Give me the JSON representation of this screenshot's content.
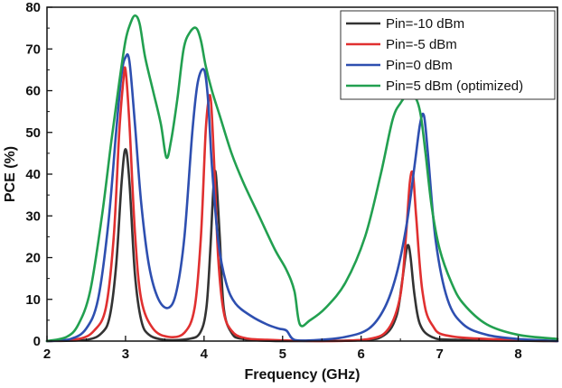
{
  "chart_data": {
    "type": "line",
    "title": "",
    "xlabel": "Frequency (GHz)",
    "ylabel": "PCE (%)",
    "xlim": [
      2,
      8.5
    ],
    "ylim": [
      0,
      80
    ],
    "xticks": [
      "2",
      "3",
      "4",
      "5",
      "6",
      "7",
      "8"
    ],
    "yticks": [
      "0",
      "10",
      "20",
      "30",
      "40",
      "50",
      "60",
      "70",
      "80"
    ],
    "grid": false,
    "legend_position": "top-right",
    "series": [
      {
        "name": "Pin=-10 dBm",
        "color": "#333333",
        "x": [
          2.0,
          2.5,
          2.7,
          2.8,
          2.88,
          2.95,
          3.0,
          3.05,
          3.12,
          3.2,
          3.3,
          3.5,
          3.8,
          3.95,
          4.03,
          4.08,
          4.12,
          4.15,
          4.2,
          4.25,
          4.35,
          4.5,
          5.0,
          6.0,
          6.3,
          6.45,
          6.52,
          6.57,
          6.6,
          6.63,
          6.68,
          6.75,
          6.9,
          7.2,
          8.5
        ],
        "y": [
          0,
          0.3,
          2,
          6,
          18,
          38,
          46,
          38,
          16,
          5,
          1.5,
          0.3,
          0.5,
          2,
          8,
          22,
          37,
          40,
          25,
          8,
          2,
          0.5,
          0,
          0.2,
          1.5,
          6,
          14,
          21,
          23,
          20,
          11,
          4,
          1,
          0.3,
          0
        ]
      },
      {
        "name": "Pin=-5 dBm",
        "color": "#e03030",
        "x": [
          2.0,
          2.4,
          2.6,
          2.75,
          2.85,
          2.92,
          2.97,
          3.0,
          3.05,
          3.12,
          3.2,
          3.35,
          3.55,
          3.75,
          3.88,
          3.96,
          4.02,
          4.06,
          4.09,
          4.13,
          4.18,
          4.25,
          4.35,
          4.5,
          4.8,
          5.5,
          6.1,
          6.35,
          6.5,
          6.57,
          6.62,
          6.66,
          6.7,
          6.78,
          6.9,
          7.2,
          8.5
        ],
        "y": [
          0,
          0.5,
          2.5,
          8,
          25,
          50,
          62,
          65,
          52,
          26,
          10,
          3,
          1,
          2,
          8,
          25,
          50,
          58,
          57,
          42,
          20,
          7,
          2.5,
          0.8,
          0.3,
          0,
          0.5,
          3,
          11,
          25,
          38,
          40,
          30,
          12,
          4,
          1,
          0
        ]
      },
      {
        "name": "Pin=0 dBm",
        "color": "#2e4fb0",
        "x": [
          2.0,
          2.3,
          2.5,
          2.65,
          2.78,
          2.88,
          2.95,
          3.0,
          3.05,
          3.12,
          3.2,
          3.3,
          3.42,
          3.55,
          3.65,
          3.75,
          3.85,
          3.92,
          4.0,
          4.05,
          4.1,
          4.18,
          4.28,
          4.4,
          4.6,
          4.8,
          4.95,
          5.05,
          5.15,
          5.4,
          5.8,
          6.1,
          6.3,
          6.45,
          6.58,
          6.68,
          6.75,
          6.8,
          6.85,
          6.95,
          7.1,
          7.3,
          7.6,
          8.0,
          8.5
        ],
        "y": [
          0,
          0.5,
          3,
          10,
          28,
          50,
          64,
          68,
          67,
          52,
          33,
          18,
          10,
          8,
          12,
          25,
          50,
          62,
          65,
          58,
          42,
          24,
          14,
          9,
          6,
          4,
          3,
          2.5,
          0.3,
          0.2,
          1,
          3,
          8,
          16,
          28,
          42,
          52,
          54,
          45,
          24,
          10,
          4,
          1.5,
          0.5,
          0
        ]
      },
      {
        "name": "Pin=5 dBm (optimized)",
        "color": "#22a050",
        "x": [
          2.0,
          2.25,
          2.4,
          2.55,
          2.7,
          2.82,
          2.92,
          3.0,
          3.06,
          3.12,
          3.18,
          3.25,
          3.35,
          3.45,
          3.52,
          3.58,
          3.66,
          3.74,
          3.82,
          3.9,
          3.96,
          4.02,
          4.1,
          4.2,
          4.35,
          4.5,
          4.7,
          4.9,
          5.05,
          5.15,
          5.22,
          5.35,
          5.55,
          5.8,
          6.05,
          6.25,
          6.4,
          6.5,
          6.6,
          6.7,
          6.76,
          6.82,
          6.9,
          7.0,
          7.15,
          7.3,
          7.6,
          8.0,
          8.5
        ],
        "y": [
          0,
          1,
          4,
          12,
          30,
          48,
          62,
          72,
          76,
          78,
          76,
          68,
          60,
          52,
          44,
          48,
          58,
          70,
          74,
          75,
          72,
          66,
          60,
          54,
          45,
          38,
          30,
          22,
          17,
          12,
          4,
          5,
          8,
          14,
          25,
          40,
          53,
          57,
          59,
          58,
          54,
          45,
          32,
          22,
          14,
          9,
          4,
          1.5,
          0.5
        ]
      }
    ]
  }
}
